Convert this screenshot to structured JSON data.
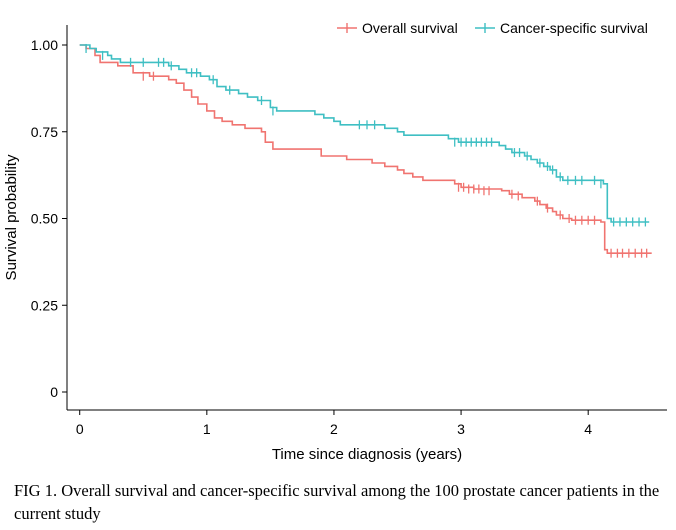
{
  "caption": "FIG 1. Overall survival and cancer-specific survival among the 100 prostate cancer patients in the current study",
  "chart_data": {
    "type": "line",
    "step": true,
    "xlabel": "Time since diagnosis (years)",
    "ylabel": "Survival probability",
    "xlim": [
      -0.1,
      4.62
    ],
    "ylim": [
      0,
      1.0
    ],
    "x_ticks": [
      0,
      1,
      2,
      3,
      4
    ],
    "x_tick_labels": [
      "0",
      "1",
      "2",
      "3",
      "4"
    ],
    "y_ticks": [
      0,
      0.25,
      0.5,
      0.75,
      1.0
    ],
    "y_tick_labels": [
      "0",
      "0.25",
      "0.50",
      "0.75",
      "1.00"
    ],
    "grid": false,
    "legend_position": "top-right",
    "series": [
      {
        "name": "Overall survival",
        "color": "#f07470",
        "steps": [
          [
            0,
            1.0
          ],
          [
            0.05,
            0.99
          ],
          [
            0.12,
            0.97
          ],
          [
            0.16,
            0.95
          ],
          [
            0.3,
            0.94
          ],
          [
            0.42,
            0.92
          ],
          [
            0.55,
            0.91
          ],
          [
            0.7,
            0.9
          ],
          [
            0.76,
            0.89
          ],
          [
            0.82,
            0.87
          ],
          [
            0.88,
            0.85
          ],
          [
            0.93,
            0.83
          ],
          [
            1.0,
            0.81
          ],
          [
            1.06,
            0.79
          ],
          [
            1.12,
            0.78
          ],
          [
            1.2,
            0.77
          ],
          [
            1.3,
            0.76
          ],
          [
            1.43,
            0.75
          ],
          [
            1.46,
            0.72
          ],
          [
            1.52,
            0.7
          ],
          [
            1.9,
            0.68
          ],
          [
            2.1,
            0.67
          ],
          [
            2.3,
            0.66
          ],
          [
            2.4,
            0.65
          ],
          [
            2.5,
            0.64
          ],
          [
            2.55,
            0.63
          ],
          [
            2.62,
            0.62
          ],
          [
            2.7,
            0.61
          ],
          [
            2.95,
            0.6
          ],
          [
            3.0,
            0.59
          ],
          [
            3.1,
            0.585
          ],
          [
            3.32,
            0.58
          ],
          [
            3.38,
            0.57
          ],
          [
            3.48,
            0.56
          ],
          [
            3.58,
            0.55
          ],
          [
            3.62,
            0.54
          ],
          [
            3.67,
            0.53
          ],
          [
            3.72,
            0.52
          ],
          [
            3.75,
            0.51
          ],
          [
            3.8,
            0.5
          ],
          [
            3.87,
            0.495
          ],
          [
            4.1,
            0.49
          ],
          [
            4.13,
            0.41
          ],
          [
            4.15,
            0.4
          ],
          [
            4.5,
            0.4
          ]
        ],
        "censored": [
          [
            0.5,
            0.91
          ],
          [
            0.58,
            0.91
          ],
          [
            2.98,
            0.59
          ],
          [
            3.02,
            0.59
          ],
          [
            3.06,
            0.585
          ],
          [
            3.1,
            0.585
          ],
          [
            3.14,
            0.585
          ],
          [
            3.18,
            0.58
          ],
          [
            3.22,
            0.58
          ],
          [
            3.4,
            0.57
          ],
          [
            3.45,
            0.565
          ],
          [
            3.6,
            0.55
          ],
          [
            3.68,
            0.53
          ],
          [
            3.78,
            0.51
          ],
          [
            3.85,
            0.5
          ],
          [
            3.9,
            0.495
          ],
          [
            3.95,
            0.495
          ],
          [
            4.0,
            0.495
          ],
          [
            4.05,
            0.495
          ],
          [
            4.18,
            0.4
          ],
          [
            4.23,
            0.4
          ],
          [
            4.27,
            0.4
          ],
          [
            4.32,
            0.4
          ],
          [
            4.37,
            0.4
          ],
          [
            4.42,
            0.4
          ],
          [
            4.46,
            0.4
          ]
        ]
      },
      {
        "name": "Cancer-specific survival",
        "color": "#3fbfc3",
        "steps": [
          [
            0,
            1.0
          ],
          [
            0.08,
            0.99
          ],
          [
            0.13,
            0.98
          ],
          [
            0.22,
            0.97
          ],
          [
            0.25,
            0.96
          ],
          [
            0.32,
            0.95
          ],
          [
            0.7,
            0.94
          ],
          [
            0.78,
            0.93
          ],
          [
            0.84,
            0.92
          ],
          [
            0.95,
            0.91
          ],
          [
            1.02,
            0.9
          ],
          [
            1.08,
            0.88
          ],
          [
            1.15,
            0.87
          ],
          [
            1.25,
            0.86
          ],
          [
            1.32,
            0.85
          ],
          [
            1.4,
            0.84
          ],
          [
            1.5,
            0.82
          ],
          [
            1.55,
            0.81
          ],
          [
            1.85,
            0.8
          ],
          [
            1.92,
            0.79
          ],
          [
            2.0,
            0.78
          ],
          [
            2.05,
            0.77
          ],
          [
            2.4,
            0.76
          ],
          [
            2.5,
            0.75
          ],
          [
            2.55,
            0.74
          ],
          [
            2.9,
            0.73
          ],
          [
            2.98,
            0.72
          ],
          [
            3.3,
            0.71
          ],
          [
            3.35,
            0.7
          ],
          [
            3.4,
            0.69
          ],
          [
            3.5,
            0.68
          ],
          [
            3.55,
            0.67
          ],
          [
            3.6,
            0.66
          ],
          [
            3.65,
            0.65
          ],
          [
            3.7,
            0.64
          ],
          [
            3.75,
            0.62
          ],
          [
            3.8,
            0.61
          ],
          [
            4.12,
            0.6
          ],
          [
            4.15,
            0.5
          ],
          [
            4.18,
            0.49
          ],
          [
            4.48,
            0.49
          ]
        ],
        "censored": [
          [
            0.05,
            0.99
          ],
          [
            0.18,
            0.97
          ],
          [
            0.4,
            0.95
          ],
          [
            0.5,
            0.95
          ],
          [
            0.62,
            0.95
          ],
          [
            0.66,
            0.95
          ],
          [
            0.72,
            0.94
          ],
          [
            0.88,
            0.92
          ],
          [
            0.92,
            0.92
          ],
          [
            1.05,
            0.9
          ],
          [
            1.18,
            0.87
          ],
          [
            1.43,
            0.84
          ],
          [
            1.52,
            0.81
          ],
          [
            2.2,
            0.77
          ],
          [
            2.26,
            0.77
          ],
          [
            2.32,
            0.77
          ],
          [
            2.95,
            0.72
          ],
          [
            3.0,
            0.72
          ],
          [
            3.04,
            0.72
          ],
          [
            3.08,
            0.72
          ],
          [
            3.12,
            0.72
          ],
          [
            3.16,
            0.72
          ],
          [
            3.2,
            0.72
          ],
          [
            3.24,
            0.72
          ],
          [
            3.42,
            0.69
          ],
          [
            3.46,
            0.69
          ],
          [
            3.52,
            0.68
          ],
          [
            3.62,
            0.66
          ],
          [
            3.68,
            0.65
          ],
          [
            3.72,
            0.64
          ],
          [
            3.78,
            0.62
          ],
          [
            3.84,
            0.61
          ],
          [
            3.9,
            0.61
          ],
          [
            3.95,
            0.61
          ],
          [
            4.05,
            0.61
          ],
          [
            4.1,
            0.6
          ],
          [
            4.2,
            0.49
          ],
          [
            4.25,
            0.49
          ],
          [
            4.3,
            0.49
          ],
          [
            4.35,
            0.49
          ],
          [
            4.4,
            0.49
          ],
          [
            4.45,
            0.49
          ]
        ]
      }
    ]
  }
}
